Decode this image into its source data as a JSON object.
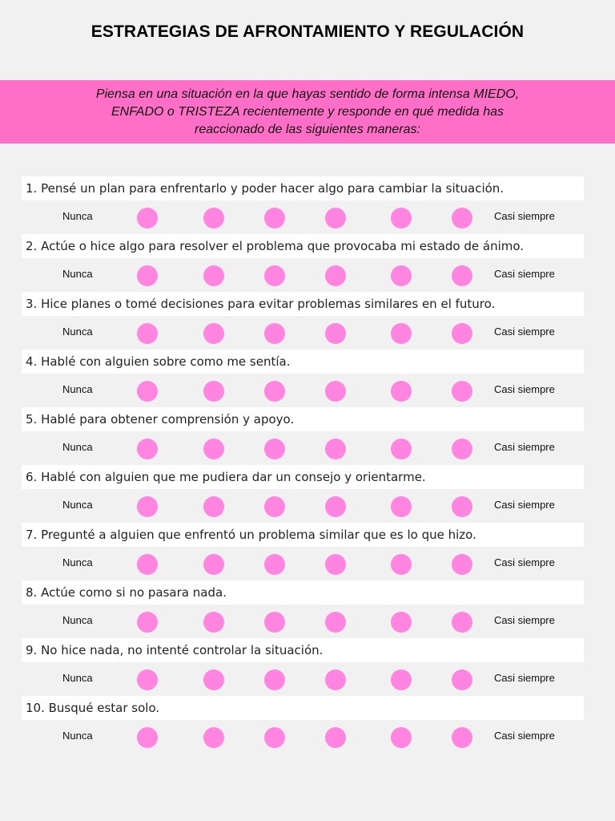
{
  "title": "ESTRATEGIAS DE AFRONTAMIENTO Y REGULACIÓN",
  "instructions": {
    "line1": "Piensa en una situación en la que hayas sentido de forma intensa MIEDO,",
    "line2": "ENFADO o TRISTEZA recientemente y responde en qué  medida has",
    "line3": "reaccionado de las siguientes maneras:"
  },
  "scale": {
    "low": "Nunca",
    "high": "Casi siempre",
    "options": 6
  },
  "colors": {
    "banner": "#ff6ec7",
    "dot": "#ff85e0",
    "background": "#f1f1f1"
  },
  "questions": [
    "1. Pensé un plan para enfrentarlo y poder hacer algo para cambiar la situación.",
    "2. Actúe o hice algo para resolver el problema que provocaba mi estado de ánimo.",
    "3. Hice planes o tomé decisiones para evitar problemas similares en el futuro.",
    "4. Hablé con alguien sobre como me sentía.",
    "5. Hablé para obtener comprensión y apoyo.",
    "6. Hablé con alguien que me pudiera dar un consejo y orientarme.",
    "7. Pregunté a alguien que enfrentó un problema similar que es lo que hizo.",
    "8. Actúe como si no pasara nada.",
    "9. No hice nada, no intenté controlar la situación.",
    "10. Busqué estar solo."
  ]
}
